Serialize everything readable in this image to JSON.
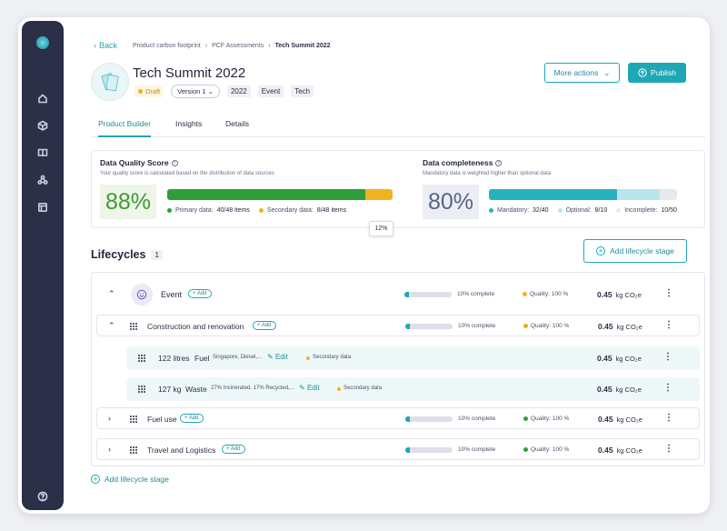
{
  "breadcrumbs": {
    "back": "Back",
    "items": [
      "Product carbon footprint",
      "PCF Assessments"
    ],
    "current": "Tech Summit 2022"
  },
  "product": {
    "title": "Tech Summit 2022",
    "status": "Draft",
    "version": "Version 1",
    "tags": [
      "2022",
      "Event",
      "Tech"
    ]
  },
  "actions": {
    "more": "More actions",
    "publish": "Publish"
  },
  "tabs": [
    "Product Builder",
    "Insights",
    "Details"
  ],
  "quality": {
    "title": "Data Quality Score",
    "subtitle": "Your quality score is calculated based on the distribution of data sources",
    "score": "88%",
    "primary_fraction": 0.88,
    "secondary_fraction": 0.12,
    "primary_label": "Primary data:",
    "primary_value": "40/48 items",
    "secondary_label": "Secondary data:",
    "secondary_value": "8/48 items",
    "tooltip": "12%"
  },
  "completeness": {
    "title": "Data completeness",
    "subtitle": "Mandatory data is weighted higher than optional data",
    "score": "80%",
    "mandatory_fraction": 0.68,
    "optional_fraction": 0.23,
    "mandatory_label": "Mandatory:",
    "mandatory_value": "32/40",
    "optional_label": "Optional:",
    "optional_value": "8/10",
    "incomplete_label": "Incomplete:",
    "incomplete_value": "10/50"
  },
  "lifecycles": {
    "title": "Lifecycles",
    "count": "1",
    "add_label": "Add lifecycle stage",
    "add_pill": "+ Add",
    "edit": "Edit",
    "unit": "kg CO₂e",
    "event": {
      "name": "Event",
      "progress": 0.1,
      "complete": "10% complete",
      "quality": "Quality: 100 %",
      "value": "0.45"
    },
    "stages": [
      {
        "name": "Construction and renovation",
        "progress": 0.1,
        "complete": "10% complete",
        "quality": "Quality: 100 %",
        "value": "0.45",
        "quality_color": "#e8ad1c"
      },
      {
        "name": "Fuel use",
        "progress": 0.1,
        "complete": "10% complete",
        "quality": "Quality: 100 %",
        "value": "0.45",
        "quality_color": "#2f9e3a"
      },
      {
        "name": "Travel and Logistics",
        "progress": 0.1,
        "complete": "10% complete",
        "quality": "Quality: 100 %",
        "value": "0.45",
        "quality_color": "#2f9e3a"
      }
    ],
    "items": [
      {
        "qty": "122 litres",
        "name": "Fuel",
        "detail": "Singapore, Diesel,...",
        "source": "Secondary data",
        "value": "0.45"
      },
      {
        "qty": "127 kg",
        "name": "Waste",
        "detail": "27% Incinerated, 17% Recycled,...",
        "source": "Secondary data",
        "value": "0.45"
      }
    ]
  },
  "colors": {
    "accent": "#1ea8b5",
    "primary": "#2f9e3a",
    "secondary": "#f2b121",
    "mandatory": "#27b1bd",
    "optional": "#b9e6ea",
    "sidebar": "#2b3048"
  },
  "icons": {
    "sidebar": [
      "logo-icon",
      "home-icon",
      "cube-icon",
      "book-icon",
      "network-icon",
      "layout-icon",
      "help-icon"
    ]
  }
}
